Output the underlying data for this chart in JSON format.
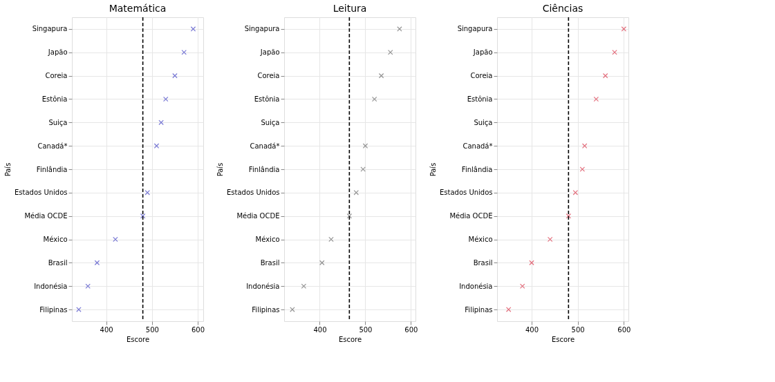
{
  "chart_data": [
    {
      "type": "scatter",
      "title": "Matemática",
      "xlabel": "Escore",
      "ylabel": "País",
      "categories": [
        "Singapura",
        "Japão",
        "Coreia",
        "Estônia",
        "Suiça",
        "Canadá*",
        "Finlândia",
        "Estados Unidos",
        "Média OCDE",
        "México",
        "Brasil",
        "Indonésia",
        "Filipinas"
      ],
      "series": [
        {
          "color": "#6a6ad0",
          "values": [
            590,
            570,
            550,
            530,
            520,
            510,
            null,
            490,
            480,
            420,
            380,
            360,
            340
          ]
        }
      ],
      "xlim": [
        325,
        612
      ],
      "xticks": [
        400,
        500,
        600
      ],
      "grid": true,
      "marker": "cross",
      "orientation": "horizontal",
      "ref_lines": [
        {
          "axis": "x",
          "value": 480,
          "color": "#000000",
          "line_style": "dashed"
        }
      ]
    },
    {
      "type": "scatter",
      "title": "Leitura",
      "xlabel": "Escore",
      "ylabel": "País",
      "categories": [
        "Singapura",
        "Japão",
        "Coreia",
        "Estônia",
        "Suiça",
        "Canadá*",
        "Finlândia",
        "Estados Unidos",
        "Média OCDE",
        "México",
        "Brasil",
        "Indonésia",
        "Filipinas"
      ],
      "series": [
        {
          "color": "#888888",
          "values": [
            575,
            555,
            535,
            520,
            null,
            500,
            495,
            480,
            465,
            425,
            405,
            365,
            340
          ]
        }
      ],
      "xlim": [
        322,
        610
      ],
      "xticks": [
        400,
        500,
        600
      ],
      "grid": true,
      "marker": "cross",
      "orientation": "horizontal",
      "ref_lines": [
        {
          "axis": "x",
          "value": 465,
          "color": "#000000",
          "line_style": "dashed"
        }
      ]
    },
    {
      "type": "scatter",
      "title": "Ciências",
      "xlabel": "Escore",
      "ylabel": "País",
      "categories": [
        "Singapura",
        "Japão",
        "Coreia",
        "Estônia",
        "Suiça",
        "Canadá*",
        "Finlândia",
        "Estados Unidos",
        "Média OCDE",
        "México",
        "Brasil",
        "Indonésia",
        "Filipinas"
      ],
      "series": [
        {
          "color": "#e06070",
          "values": [
            600,
            580,
            560,
            540,
            null,
            515,
            510,
            495,
            480,
            440,
            400,
            380,
            350
          ]
        }
      ],
      "xlim": [
        325,
        610
      ],
      "xticks": [
        400,
        500,
        600
      ],
      "grid": true,
      "marker": "cross",
      "orientation": "horizontal",
      "ref_lines": [
        {
          "axis": "x",
          "value": 480,
          "color": "#000000",
          "line_style": "dashed"
        }
      ]
    }
  ]
}
